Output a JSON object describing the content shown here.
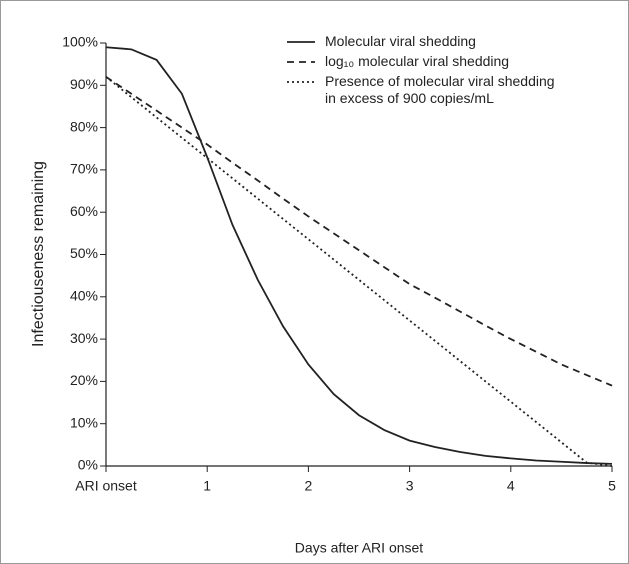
{
  "chart_data": {
    "type": "line",
    "xlabel": "Days after ARI onset",
    "ylabel": "Infectiouseness remaining",
    "x": [
      0,
      0.25,
      0.5,
      0.75,
      1,
      1.25,
      1.5,
      1.75,
      2,
      2.25,
      2.5,
      2.75,
      3,
      3.25,
      3.5,
      3.75,
      4,
      4.25,
      4.5,
      4.75,
      5
    ],
    "series": [
      {
        "name": "Molecular viral shedding",
        "color": "#222222",
        "dash": "solid",
        "values": [
          99,
          98.5,
          96,
          88,
          73,
          57,
          44,
          33,
          24,
          17,
          12,
          8.5,
          6,
          4.5,
          3.3,
          2.4,
          1.8,
          1.3,
          1,
          0.7,
          0.5
        ]
      },
      {
        "name": "log₁₀ molecular viral shedding",
        "color": "#222222",
        "dash": "dashed",
        "values": [
          92,
          88,
          84,
          80,
          76,
          71.7,
          67.5,
          63.2,
          59,
          55,
          51,
          47,
          43,
          39.8,
          36.5,
          33.2,
          30,
          27,
          24,
          21.5,
          19
        ]
      },
      {
        "name": "Presence of molecular viral shedding in excess of 900 copies/mL",
        "color": "#222222",
        "dash": "dotted",
        "values": [
          92,
          87.2,
          82.4,
          77.6,
          72.8,
          68,
          63.2,
          58.4,
          53.6,
          48.8,
          44,
          39.2,
          34.4,
          29.6,
          24.8,
          20,
          15.2,
          10.4,
          5.6,
          0.8,
          0
        ]
      }
    ],
    "xlim": [
      0,
      5
    ],
    "xticks": [
      {
        "value": 0,
        "label": "ARI onset"
      },
      1,
      2,
      3,
      4,
      5
    ],
    "ylim": [
      0,
      100
    ],
    "yticks": [
      {
        "value": 0,
        "label": "0%"
      },
      {
        "value": 10,
        "label": "10%"
      },
      {
        "value": 20,
        "label": "20%"
      },
      {
        "value": 30,
        "label": "30%"
      },
      {
        "value": 40,
        "label": "40%"
      },
      {
        "value": 50,
        "label": "50%"
      },
      {
        "value": 60,
        "label": "60%"
      },
      {
        "value": 70,
        "label": "70%"
      },
      {
        "value": 80,
        "label": "80%"
      },
      {
        "value": 90,
        "label": "90%"
      },
      {
        "value": 100,
        "label": "100%"
      }
    ],
    "grid": false,
    "legend": "top-right"
  }
}
